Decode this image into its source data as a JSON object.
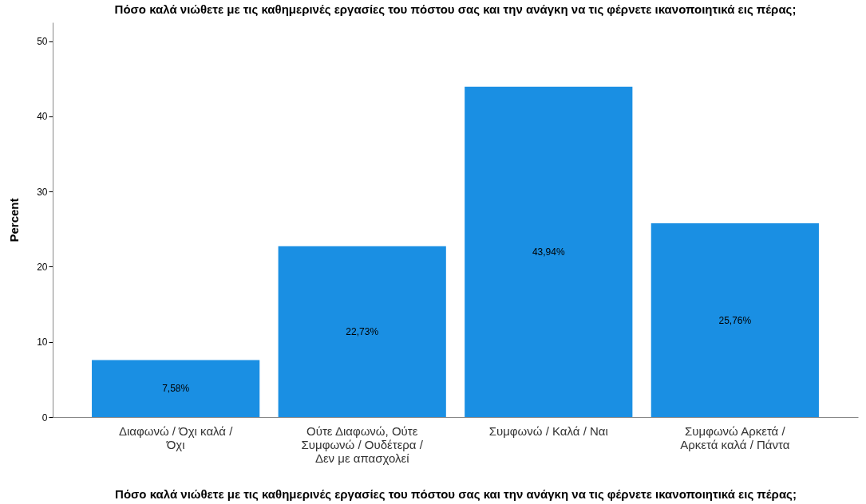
{
  "chart_data": {
    "type": "bar",
    "title": "Πόσο καλά νιώθετε με τις καθημερινές εργασίες του πόστου σας και την ανάγκη να τις φέρνετε ικανοποιητικά εις πέρας;",
    "xlabel": "Πόσο καλά νιώθετε με τις καθημερινές εργασίες του πόστου σας και την ανάγκη να τις φέρνετε ικανοποιητικά εις πέρας;",
    "ylabel": "Percent",
    "categories": [
      "Διαφωνώ / Όχι καλά / Όχι",
      "Ούτε Διαφωνώ, Ούτε Συμφωνώ / Ουδέτερα / Δεν με απασχολεί",
      "Συμφωνώ / Καλά / Ναι",
      "Συμφωνώ Αρκετά / Αρκετά καλά / Πάντα"
    ],
    "values": [
      7.58,
      22.73,
      43.94,
      25.76
    ],
    "value_labels": [
      "7,58%",
      "22,73%",
      "43,94%",
      "25,76%"
    ],
    "color": "#1a8fe3",
    "ylim": [
      0,
      52.5
    ],
    "yticks": [
      0,
      10,
      20,
      30,
      40,
      50
    ],
    "grid": false
  }
}
